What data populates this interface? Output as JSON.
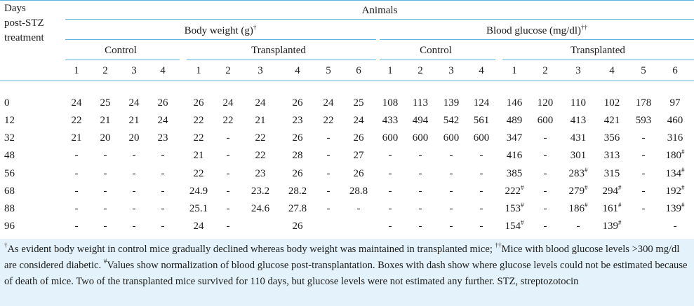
{
  "header": {
    "days_line1": "Days",
    "days_line2": "post-STZ",
    "days_line3": "treatment",
    "animals": "Animals",
    "body_weight": "Body weight (g)",
    "body_weight_mark": "†",
    "blood_glucose": "Blood glucose (mg/dl)",
    "blood_glucose_mark": "††",
    "control": "Control",
    "transplanted": "Transplanted"
  },
  "columns": {
    "bw_control": [
      "1",
      "2",
      "3",
      "4"
    ],
    "bw_transplanted": [
      "1",
      "2",
      "3",
      "4",
      "5",
      "6"
    ],
    "bg_control": [
      "1",
      "2",
      "3",
      "4"
    ],
    "bg_transplanted": [
      "1",
      "2",
      "3",
      "4",
      "5",
      "6"
    ]
  },
  "rows": [
    {
      "day": "0",
      "cells": [
        "24",
        "25",
        "24",
        "26",
        "26",
        "24",
        "24",
        "26",
        "24",
        "25",
        "108",
        "113",
        "139",
        "124",
        "146",
        "120",
        "110",
        "102",
        "178",
        "97"
      ]
    },
    {
      "day": "12",
      "cells": [
        "22",
        "21",
        "21",
        "24",
        "22",
        "22",
        "21",
        "23",
        "22",
        "24",
        "433",
        "494",
        "542",
        "561",
        "489",
        "600",
        "413",
        "421",
        "593",
        "460"
      ]
    },
    {
      "day": "32",
      "cells": [
        "21",
        "20",
        "20",
        "23",
        "22",
        "-",
        "22",
        "26",
        "-",
        "26",
        "600",
        "600",
        "600",
        "600",
        "347",
        "-",
        "431",
        "356",
        "-",
        "316"
      ]
    },
    {
      "day": "48",
      "cells": [
        "-",
        "-",
        "-",
        "-",
        "21",
        "-",
        "22",
        "28",
        "-",
        "27",
        "-",
        "-",
        "-",
        "-",
        "416",
        "-",
        "301",
        "313",
        "-",
        "180#"
      ]
    },
    {
      "day": "56",
      "cells": [
        "-",
        "-",
        "-",
        "-",
        "22",
        "-",
        "23",
        "26",
        "-",
        "26",
        "-",
        "-",
        "-",
        "-",
        "385",
        "-",
        "283#",
        "315",
        "-",
        "134#"
      ]
    },
    {
      "day": "68",
      "cells": [
        "-",
        "-",
        "-",
        "-",
        "24.9",
        "-",
        "23.2",
        "28.2",
        "-",
        "28.8",
        "-",
        "-",
        "-",
        "-",
        "222#",
        "-",
        "279#",
        "294#",
        "-",
        "192#"
      ]
    },
    {
      "day": "88",
      "cells": [
        "-",
        "-",
        "-",
        "-",
        "25.1",
        "-",
        "24.6",
        "27.8",
        "-",
        "-",
        "-",
        "-",
        "-",
        "-",
        "153#",
        "-",
        "186#",
        "161#",
        "-",
        "139#"
      ]
    },
    {
      "day": "96",
      "cells": [
        "-",
        "-",
        "-",
        "-",
        "24",
        "-",
        "",
        "26",
        "",
        "",
        "-",
        "-",
        "-",
        "-",
        "154#",
        "-",
        "-",
        "139#",
        "",
        "-"
      ]
    }
  ],
  "footnote": {
    "dagger": "†",
    "part1": "As evident body weight in control mice gradually declined whereas body weight was maintained in transplanted mice; ",
    "ddagger": "††",
    "part2": "Mice with blood glucose levels >300 mg/dl are considered diabetic. ",
    "hash": "#",
    "part3": "Values show normalization of blood glucose post-transplantation. Boxes with dash show where glucose levels could not be estimated because of death of mice. Two of the transplanted mice survived for 110 days, but glucose levels were not estimated any further. STZ, streptozotocin"
  },
  "colors": {
    "rule": "#5bb5dd",
    "footnote_bg": "#e4f3fb",
    "text": "#1a1a1a"
  }
}
